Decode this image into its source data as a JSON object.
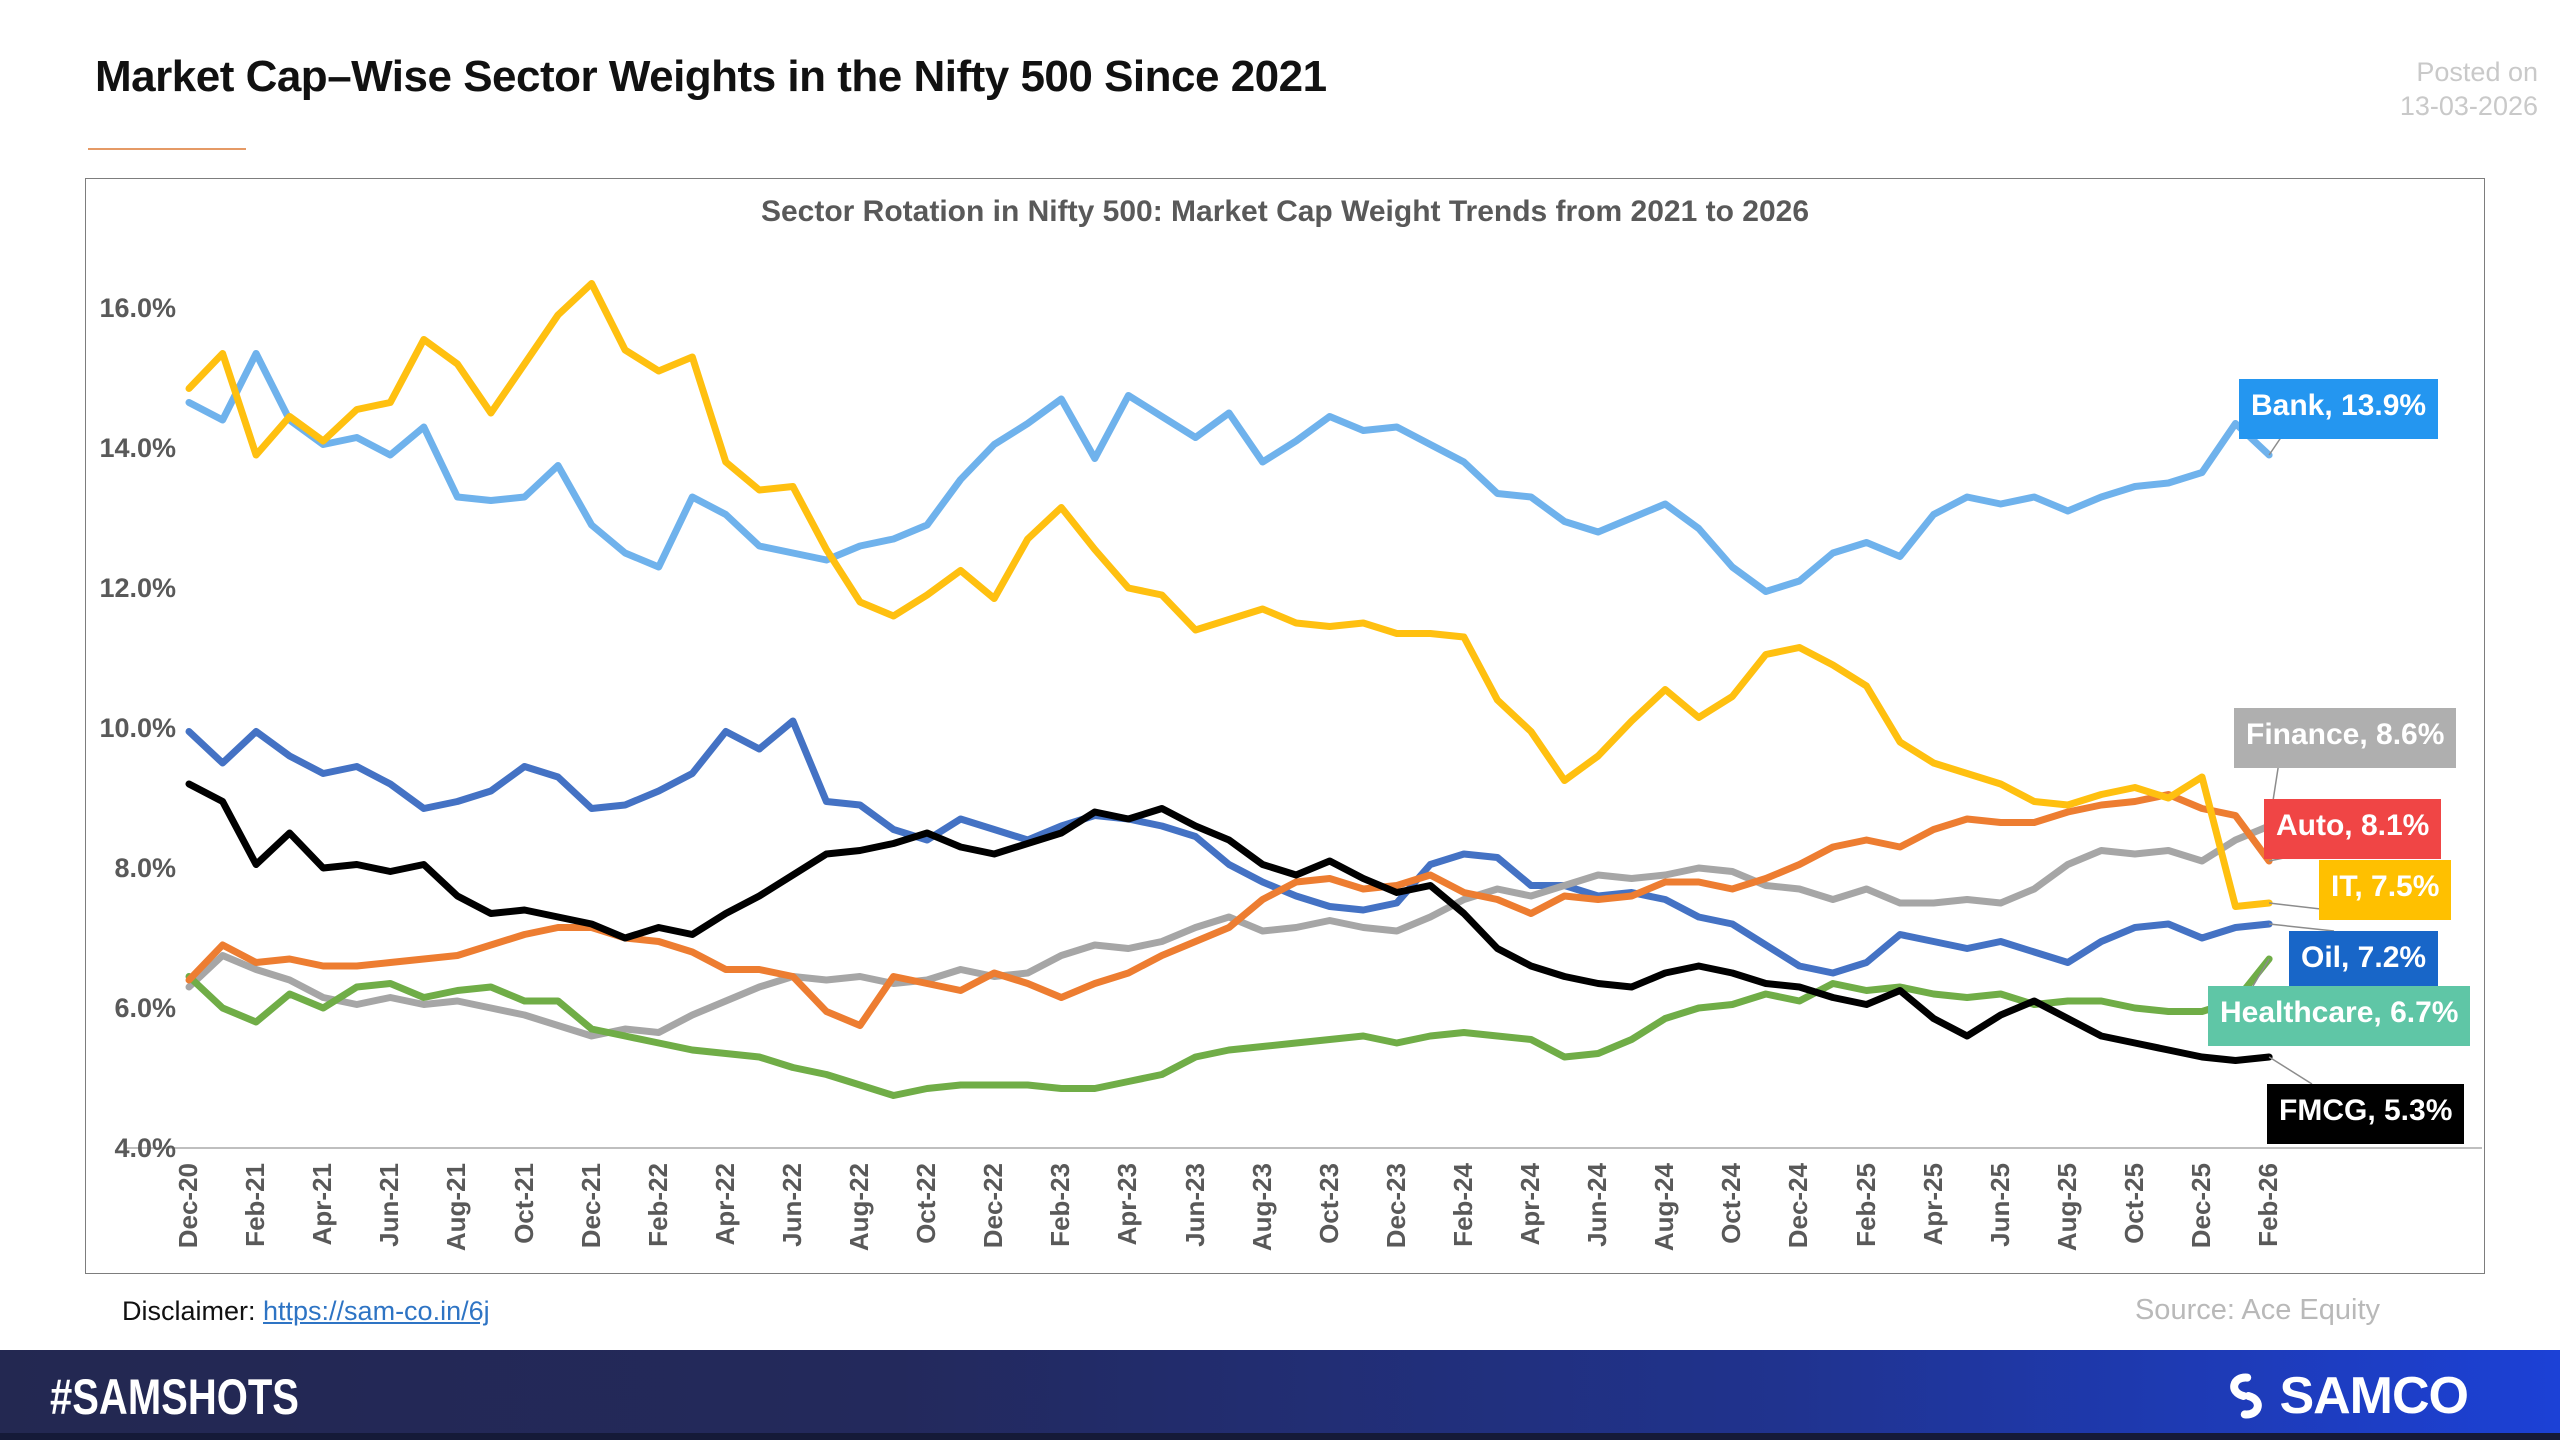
{
  "header": {
    "title": "Market Cap–Wise Sector Weights in the Nifty 500 Since 2021",
    "posted_on_1": "Posted on",
    "posted_on_2": "13-03-2026"
  },
  "chart_data": {
    "type": "line",
    "title": "Sector Rotation in Nifty 500: Market Cap Weight Trends from 2021 to 2026",
    "x_label_note": "monthly data Dec-2020 to Feb-2026, tick labels every 2 months",
    "x_labels": [
      "Dec-20",
      "Feb-21",
      "Apr-21",
      "Jun-21",
      "Aug-21",
      "Oct-21",
      "Dec-21",
      "Feb-22",
      "Apr-22",
      "Jun-22",
      "Aug-22",
      "Oct-22",
      "Dec-22",
      "Feb-23",
      "Apr-23",
      "Jun-23",
      "Aug-23",
      "Oct-23",
      "Dec-23",
      "Feb-24",
      "Apr-24",
      "Jun-24",
      "Aug-24",
      "Oct-24",
      "Dec-24",
      "Feb-25",
      "Apr-25",
      "Jun-25",
      "Aug-25",
      "Oct-25",
      "Dec-25",
      "Feb-26"
    ],
    "ylim": [
      4,
      16
    ],
    "y_ticks": [
      {
        "v": 16,
        "label": "16.0%"
      },
      {
        "v": 14,
        "label": "14.0%"
      },
      {
        "v": 12,
        "label": "12.0%"
      },
      {
        "v": 10,
        "label": "10.0%"
      },
      {
        "v": 8,
        "label": "8.0%"
      },
      {
        "v": 6,
        "label": "6.0%"
      },
      {
        "v": 4,
        "label": "4.0%"
      }
    ],
    "grid": "off",
    "legend_position": "end-of-line data labels (right side)",
    "series": [
      {
        "name": "Bank",
        "color": "#6fb2ec",
        "end_value": 13.9,
        "chip": {
          "label": "Bank, 13.9%",
          "bg": "#2496f0"
        },
        "values": [
          14.65,
          14.4,
          15.35,
          14.4,
          14.05,
          14.15,
          13.9,
          14.3,
          13.3,
          13.25,
          13.3,
          13.75,
          12.9,
          12.5,
          12.3,
          13.3,
          13.05,
          12.6,
          12.5,
          12.4,
          12.6,
          12.7,
          12.9,
          13.55,
          14.05,
          14.35,
          14.7,
          13.85,
          14.75,
          14.45,
          14.15,
          14.5,
          13.8,
          14.1,
          14.45,
          14.25,
          14.3,
          14.05,
          13.8,
          13.35,
          13.3,
          12.95,
          12.8,
          13.0,
          13.2,
          12.85,
          12.3,
          11.95,
          12.1,
          12.5,
          12.65,
          12.45,
          13.05,
          13.3,
          13.2,
          13.3,
          13.1,
          13.3,
          13.45,
          13.5,
          13.65,
          14.35,
          13.9
        ]
      },
      {
        "name": "Oil",
        "color": "#4472c4",
        "end_value": 7.2,
        "chip": {
          "label": "Oil, 7.2%",
          "bg": "#1866c8"
        },
        "values": [
          9.95,
          9.5,
          9.95,
          9.6,
          9.35,
          9.45,
          9.2,
          8.85,
          8.95,
          9.1,
          9.45,
          9.3,
          8.85,
          8.9,
          9.1,
          9.35,
          9.95,
          9.7,
          10.1,
          8.95,
          8.9,
          8.55,
          8.4,
          8.7,
          8.55,
          8.4,
          8.6,
          8.75,
          8.7,
          8.6,
          8.45,
          8.05,
          7.8,
          7.6,
          7.45,
          7.4,
          7.5,
          8.05,
          8.2,
          8.15,
          7.75,
          7.75,
          7.6,
          7.65,
          7.55,
          7.3,
          7.2,
          6.9,
          6.6,
          6.5,
          6.65,
          7.05,
          6.95,
          6.85,
          6.95,
          6.8,
          6.65,
          6.95,
          7.15,
          7.2,
          7.0,
          7.15,
          7.2
        ]
      },
      {
        "name": "Finance",
        "color": "#a6a6a6",
        "end_value": 8.6,
        "chip": {
          "label": "Finance, 8.6%",
          "bg": "#afafaf"
        },
        "values": [
          6.3,
          6.75,
          6.55,
          6.4,
          6.15,
          6.05,
          6.15,
          6.05,
          6.1,
          6.0,
          5.9,
          5.75,
          5.6,
          5.7,
          5.65,
          5.9,
          6.1,
          6.3,
          6.45,
          6.4,
          6.45,
          6.35,
          6.4,
          6.55,
          6.45,
          6.5,
          6.75,
          6.9,
          6.85,
          6.95,
          7.15,
          7.3,
          7.1,
          7.15,
          7.25,
          7.15,
          7.1,
          7.3,
          7.55,
          7.7,
          7.6,
          7.75,
          7.9,
          7.85,
          7.9,
          8.0,
          7.95,
          7.75,
          7.7,
          7.55,
          7.7,
          7.5,
          7.5,
          7.55,
          7.5,
          7.7,
          8.05,
          8.25,
          8.2,
          8.25,
          8.1,
          8.4,
          8.6
        ]
      },
      {
        "name": "Healthcare",
        "color": "#70ad47",
        "end_value": 6.7,
        "chip": {
          "label": "Healthcare, 6.7%",
          "bg": "#5fc6a6"
        },
        "values": [
          6.45,
          6.0,
          5.8,
          6.2,
          6.0,
          6.3,
          6.35,
          6.15,
          6.25,
          6.3,
          6.1,
          6.1,
          5.7,
          5.6,
          5.5,
          5.4,
          5.35,
          5.3,
          5.15,
          5.05,
          4.9,
          4.75,
          4.85,
          4.9,
          4.9,
          4.9,
          4.85,
          4.85,
          4.95,
          5.05,
          5.3,
          5.4,
          5.45,
          5.5,
          5.55,
          5.6,
          5.5,
          5.6,
          5.65,
          5.6,
          5.55,
          5.3,
          5.35,
          5.55,
          5.85,
          6.0,
          6.05,
          6.2,
          6.1,
          6.35,
          6.25,
          6.3,
          6.2,
          6.15,
          6.2,
          6.05,
          6.1,
          6.1,
          6.0,
          5.95,
          5.95,
          6.1,
          6.7
        ]
      },
      {
        "name": "Auto",
        "color": "#ed7d31",
        "end_value": 8.1,
        "chip": {
          "label": "Auto, 8.1%",
          "bg": "#f04545"
        },
        "values": [
          6.4,
          6.9,
          6.65,
          6.7,
          6.6,
          6.6,
          6.65,
          6.7,
          6.75,
          6.9,
          7.05,
          7.15,
          7.15,
          7.0,
          6.95,
          6.8,
          6.55,
          6.55,
          6.45,
          5.95,
          5.75,
          6.45,
          6.35,
          6.25,
          6.5,
          6.35,
          6.15,
          6.35,
          6.5,
          6.75,
          6.95,
          7.15,
          7.55,
          7.8,
          7.85,
          7.7,
          7.75,
          7.9,
          7.65,
          7.55,
          7.35,
          7.6,
          7.55,
          7.6,
          7.8,
          7.8,
          7.7,
          7.85,
          8.05,
          8.3,
          8.4,
          8.3,
          8.55,
          8.7,
          8.65,
          8.65,
          8.8,
          8.9,
          8.95,
          9.05,
          8.85,
          8.75,
          8.1
        ]
      },
      {
        "name": "FMCG",
        "color": "#000000",
        "end_value": 5.3,
        "chip": {
          "label": "FMCG, 5.3%",
          "bg": "#000000"
        },
        "values": [
          9.2,
          8.95,
          8.05,
          8.5,
          8.0,
          8.05,
          7.95,
          8.05,
          7.6,
          7.35,
          7.4,
          7.3,
          7.2,
          7.0,
          7.15,
          7.05,
          7.35,
          7.6,
          7.9,
          8.2,
          8.25,
          8.35,
          8.5,
          8.3,
          8.2,
          8.35,
          8.5,
          8.8,
          8.7,
          8.85,
          8.6,
          8.4,
          8.05,
          7.9,
          8.1,
          7.85,
          7.65,
          7.75,
          7.35,
          6.85,
          6.6,
          6.45,
          6.35,
          6.3,
          6.5,
          6.6,
          6.5,
          6.35,
          6.3,
          6.15,
          6.05,
          6.25,
          5.85,
          5.6,
          5.9,
          6.1,
          5.85,
          5.6,
          5.5,
          5.4,
          5.3,
          5.25,
          5.3
        ]
      },
      {
        "name": "IT",
        "color": "#ffc010",
        "end_value": 7.5,
        "chip": {
          "label": "IT, 7.5%",
          "bg": "#ffc000"
        },
        "values": [
          14.85,
          15.35,
          13.9,
          14.45,
          14.1,
          14.55,
          14.65,
          15.55,
          15.2,
          14.5,
          15.2,
          15.9,
          16.35,
          15.4,
          15.1,
          15.3,
          13.8,
          13.4,
          13.45,
          12.55,
          11.8,
          11.6,
          11.9,
          12.25,
          11.85,
          12.7,
          13.15,
          12.55,
          12.0,
          11.9,
          11.4,
          11.55,
          11.7,
          11.5,
          11.45,
          11.5,
          11.35,
          11.35,
          11.3,
          10.4,
          9.95,
          9.25,
          9.6,
          10.1,
          10.55,
          10.15,
          10.45,
          11.05,
          11.15,
          10.9,
          10.6,
          9.8,
          9.5,
          9.35,
          9.2,
          8.95,
          8.9,
          9.05,
          9.15,
          9.0,
          9.3,
          7.45,
          7.5
        ]
      }
    ]
  },
  "footer": {
    "disclaimer_label": "Disclaimer: ",
    "disclaimer_link": "https://sam-co.in/6j",
    "source": "Source: Ace Equity",
    "hashtag": "#SAMSHOTS",
    "brand": "SAMCO"
  }
}
